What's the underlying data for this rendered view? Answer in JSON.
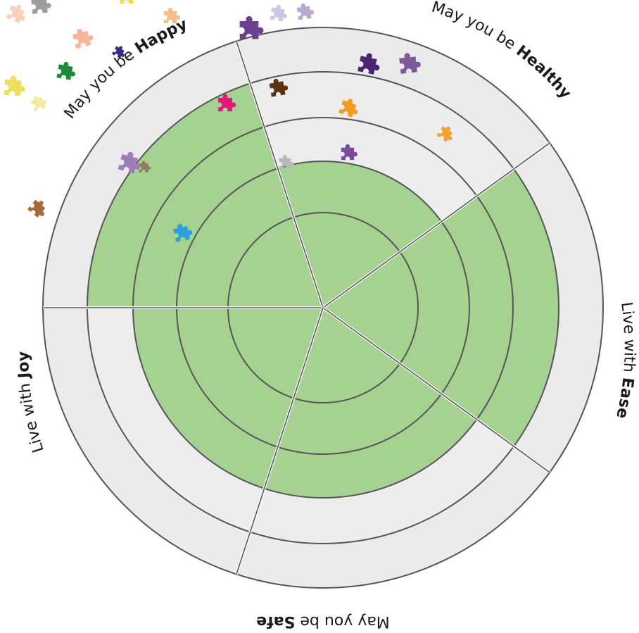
{
  "labels": {
    "happy": {
      "prefix": "May you be ",
      "word": "Happy"
    },
    "healthy": {
      "prefix": "May you be ",
      "word": "Healthy"
    },
    "ease": {
      "prefix": "Live with ",
      "word": "Ease"
    },
    "safe": {
      "prefix": "May you be ",
      "word": "Safe"
    },
    "joy": {
      "prefix": "Live with ",
      "word": "Joy"
    }
  },
  "rings": 5,
  "fill_levels": {
    "happy": 4,
    "healthy": 2,
    "ease": 4,
    "safe": 3,
    "joy": 3
  },
  "colors": {
    "outer_rim": "#ebebeb",
    "ring_bg": "#ededed",
    "green": "#a6d291",
    "line": "#555555"
  },
  "puzzle_pieces": [
    {
      "name": "purple-piece",
      "color": "#6c3f90"
    },
    {
      "name": "lavender-piece",
      "color": "#cfc6e4"
    },
    {
      "name": "lavender-piece-2",
      "color": "#b8aacb"
    },
    {
      "name": "plum-piece",
      "color": "#4b2472"
    },
    {
      "name": "violet-piece",
      "color": "#7d5b9a"
    },
    {
      "name": "orange-piece",
      "color": "#f39a23"
    },
    {
      "name": "orange-piece-2",
      "color": "#f5a030"
    },
    {
      "name": "violet-piece-2",
      "color": "#7a4a9c"
    },
    {
      "name": "brown-piece",
      "color": "#5b3312"
    },
    {
      "name": "pink-piece",
      "color": "#e3177a"
    },
    {
      "name": "lilac-piece",
      "color": "#9e7cb8"
    },
    {
      "name": "taupe-piece",
      "color": "#8f7e66"
    },
    {
      "name": "grey-piece",
      "color": "#b9b9b9"
    },
    {
      "name": "blue-piece",
      "color": "#2a9fd8"
    },
    {
      "name": "tan-piece",
      "color": "#a5693a"
    },
    {
      "name": "green-piece",
      "color": "#1e8a3a"
    },
    {
      "name": "salmon-piece",
      "color": "#f6b49a"
    },
    {
      "name": "yellow-piece",
      "color": "#efdd5e"
    },
    {
      "name": "yellow-piece-2",
      "color": "#f3e9a0"
    },
    {
      "name": "peach-piece",
      "color": "#f8d1bb"
    },
    {
      "name": "grey-piece-2",
      "color": "#9d9d9d"
    },
    {
      "name": "gold-piece",
      "color": "#f2da33"
    },
    {
      "name": "apricot-piece",
      "color": "#f5c08a"
    },
    {
      "name": "mint-piece",
      "color": "#e6ecd4"
    },
    {
      "name": "indigo-piece",
      "color": "#3c2a82"
    }
  ]
}
